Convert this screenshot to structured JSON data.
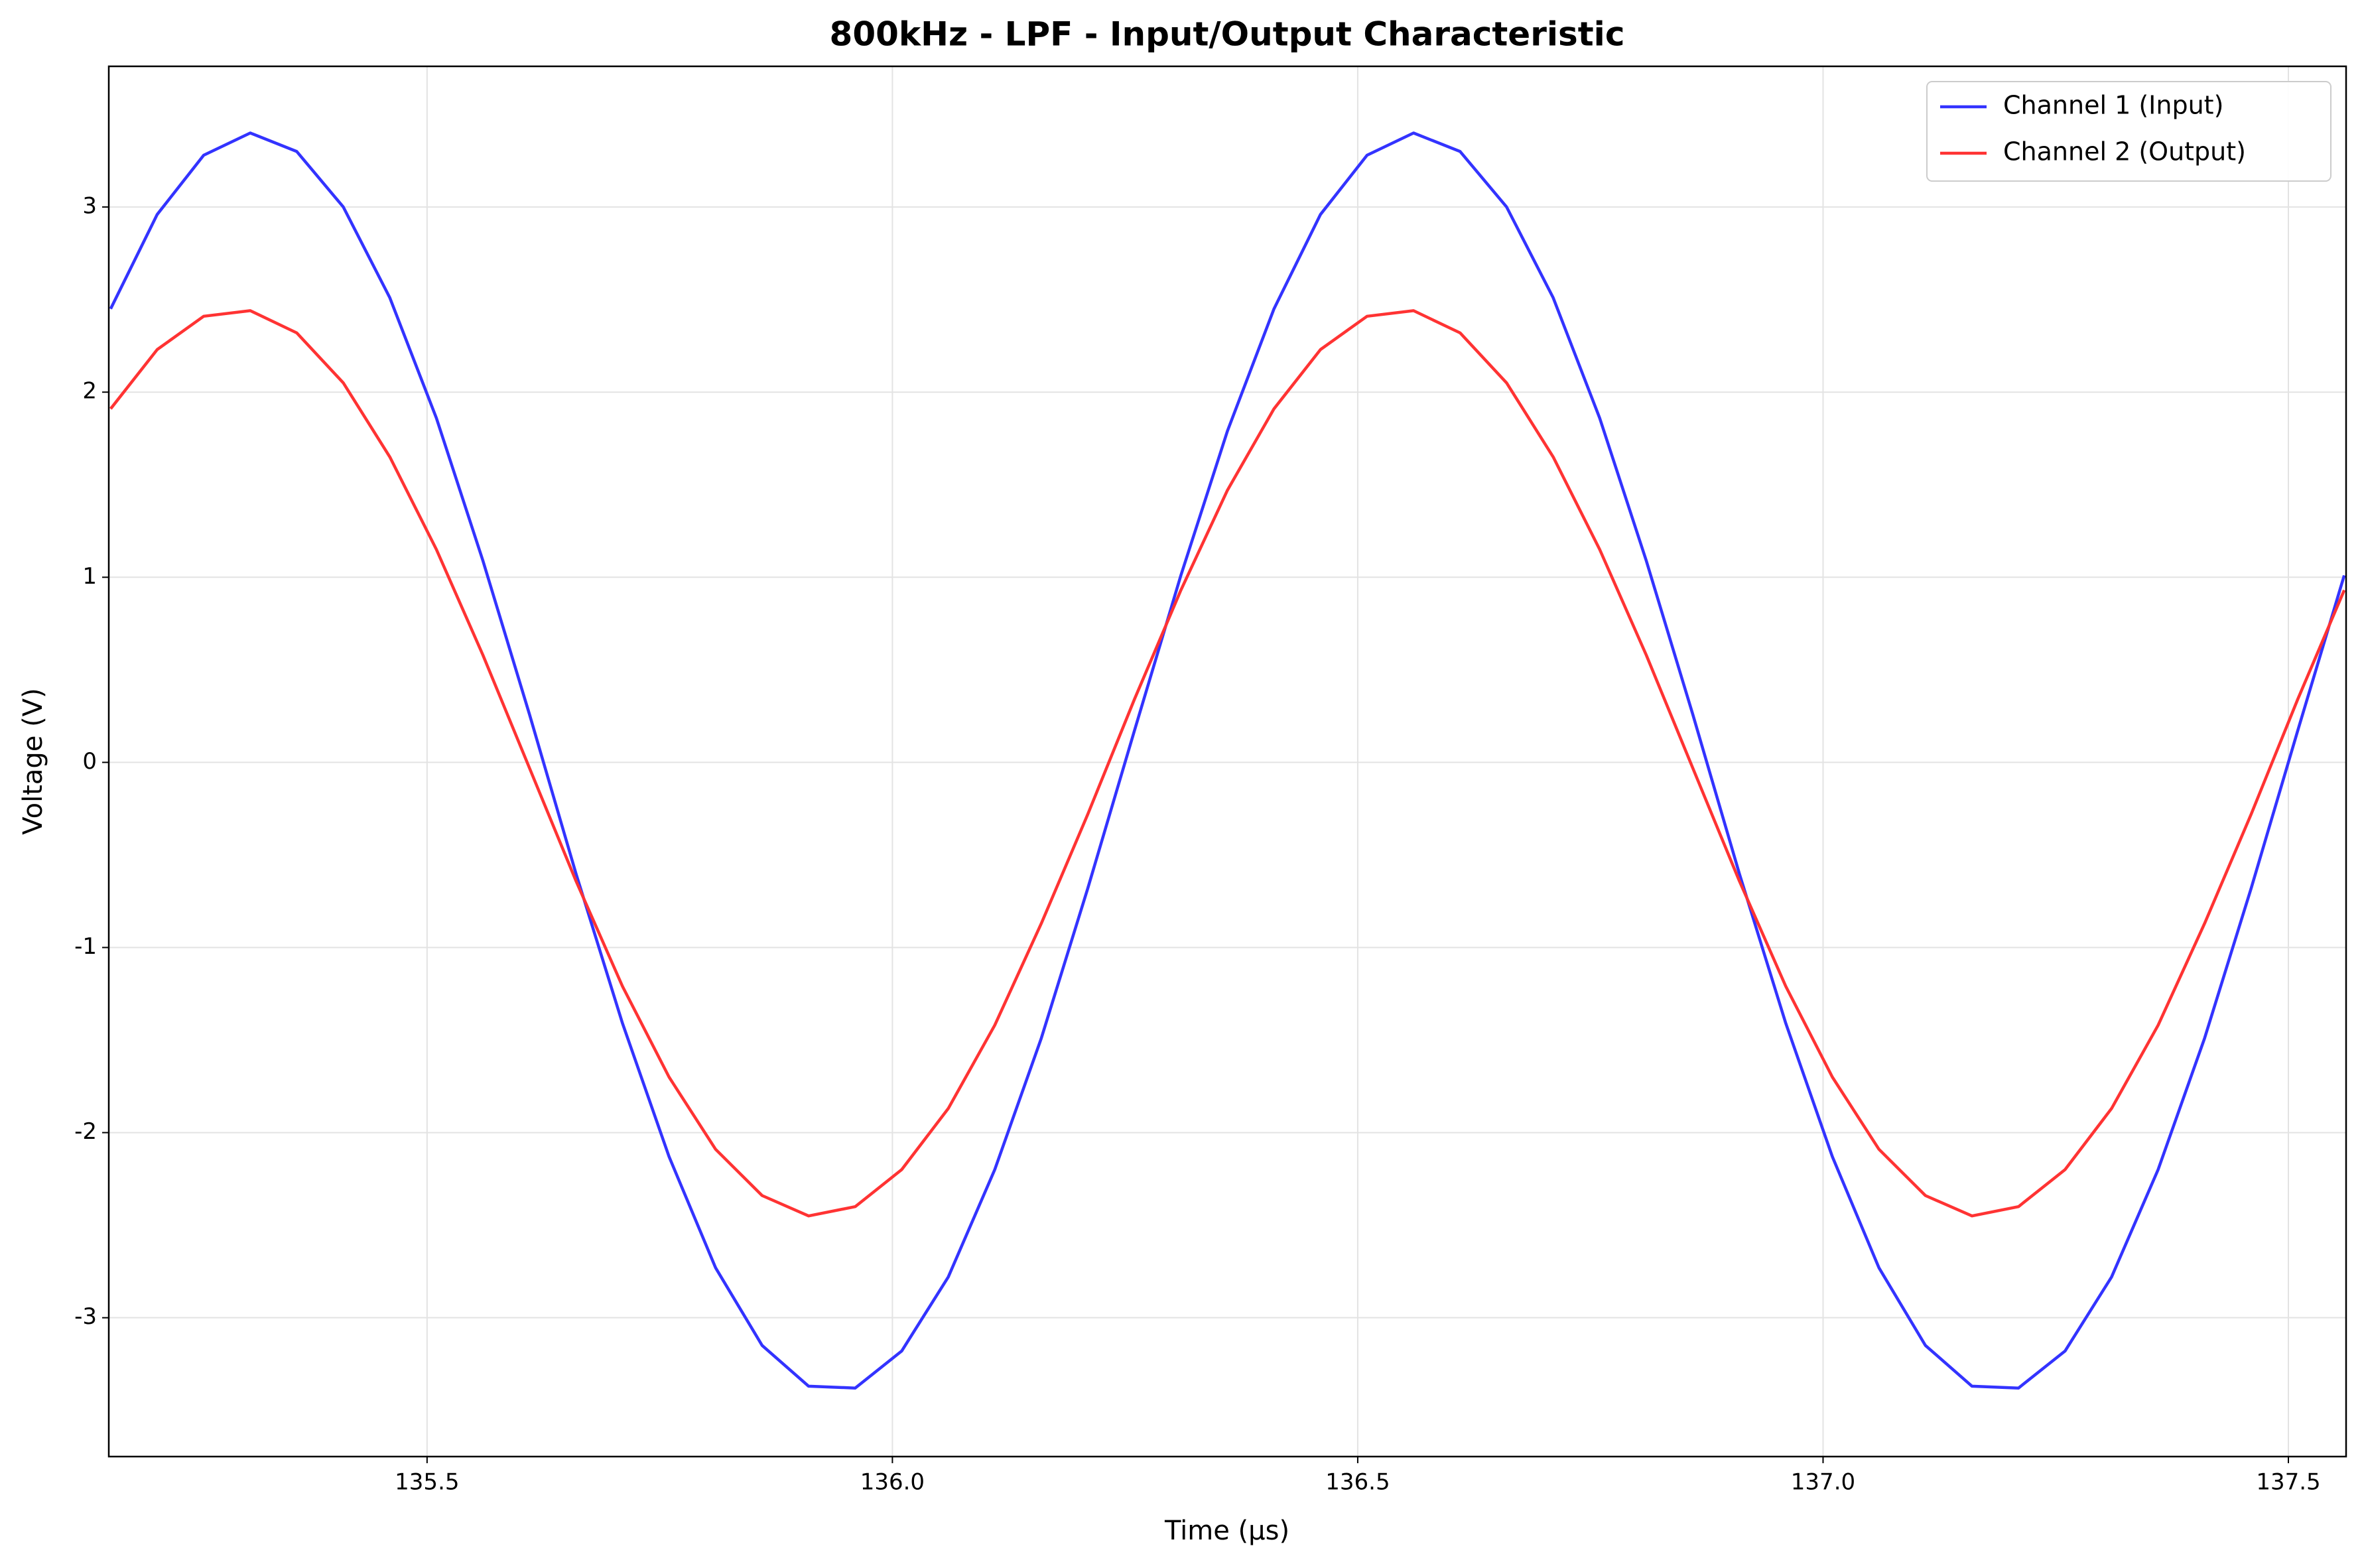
{
  "chart_data": {
    "type": "line",
    "title": "800kHz - LPF - Input/Output Characteristic",
    "x_label": "Time (µs)",
    "y_label": "Voltage (V)",
    "x": [
      135.16,
      135.21,
      135.26,
      135.31,
      135.36,
      135.41,
      135.46,
      135.51,
      135.56,
      135.61,
      135.66,
      135.71,
      135.76,
      135.81,
      135.86,
      135.91,
      135.96,
      136.01,
      136.06,
      136.11,
      136.16,
      136.21,
      136.26,
      136.31,
      136.36,
      136.41,
      136.46,
      136.51,
      136.56,
      136.61,
      136.66,
      136.71,
      136.76,
      136.81,
      136.86,
      136.91,
      136.96,
      137.01,
      137.06,
      137.11,
      137.16,
      137.21,
      137.26,
      137.31,
      137.36,
      137.41,
      137.46,
      137.51,
      137.56
    ],
    "series": [
      {
        "name": "Channel 1 (Input)",
        "color": "#3333ff",
        "values": [
          2.45,
          2.96,
          3.28,
          3.4,
          3.3,
          3.0,
          2.51,
          1.86,
          1.09,
          0.26,
          -0.6,
          -1.41,
          -2.13,
          -2.73,
          -3.15,
          -3.37,
          -3.38,
          -3.18,
          -2.78,
          -2.2,
          -1.49,
          -0.68,
          0.17,
          1.01,
          1.79,
          2.45,
          2.96,
          3.28,
          3.4,
          3.3,
          3.0,
          2.51,
          1.86,
          1.09,
          0.26,
          -0.6,
          -1.41,
          -2.13,
          -2.73,
          -3.15,
          -3.37,
          -3.38,
          -3.18,
          -2.78,
          -2.2,
          -1.49,
          -0.68,
          0.17,
          1.01
        ]
      },
      {
        "name": "Channel 2 (Output)",
        "color": "#ff3333",
        "values": [
          1.91,
          2.23,
          2.41,
          2.44,
          2.32,
          2.05,
          1.65,
          1.15,
          0.58,
          -0.03,
          -0.64,
          -1.21,
          -1.7,
          -2.09,
          -2.34,
          -2.45,
          -2.4,
          -2.2,
          -1.87,
          -1.42,
          -0.87,
          -0.28,
          0.34,
          0.93,
          1.47,
          1.91,
          2.23,
          2.41,
          2.44,
          2.32,
          2.05,
          1.65,
          1.15,
          0.58,
          -0.03,
          -0.64,
          -1.21,
          -1.7,
          -2.09,
          -2.34,
          -2.45,
          -2.4,
          -2.2,
          -1.87,
          -1.42,
          -0.87,
          -0.28,
          0.34,
          0.93
        ]
      }
    ],
    "xlim": [
      135.158,
      137.562
    ],
    "ylim": [
      -3.75,
      3.76
    ],
    "xticks": [
      {
        "value": 135.5,
        "label": "135.5"
      },
      {
        "value": 136.0,
        "label": "136.0"
      },
      {
        "value": 136.5,
        "label": "136.5"
      },
      {
        "value": 137.0,
        "label": "137.0"
      },
      {
        "value": 137.5,
        "label": "137.5"
      }
    ],
    "yticks": [
      -3,
      -2,
      -1,
      0,
      1,
      2,
      3
    ],
    "grid": true,
    "legend": "upper right"
  }
}
